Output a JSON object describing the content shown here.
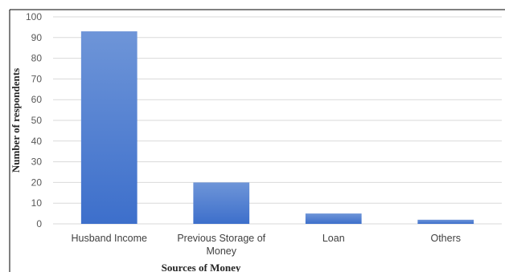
{
  "chart_data": {
    "type": "bar",
    "title": "",
    "xlabel": "Sources of Money",
    "ylabel": "Number of respondents",
    "categories": [
      [
        "Husband Income"
      ],
      [
        "Previous Storage of",
        "Money"
      ],
      [
        "Loan"
      ],
      [
        "Others"
      ]
    ],
    "values": [
      93,
      20,
      5,
      2
    ],
    "ylim": [
      0,
      100
    ],
    "yticks": [
      0,
      10,
      20,
      30,
      40,
      50,
      60,
      70,
      80,
      90,
      100
    ],
    "grid": true,
    "legend": "none",
    "colors": {
      "bar_top": "#6e95d8",
      "bar_bottom": "#3d6fcb",
      "grid": "#d9d9d9",
      "frame": "#000000"
    }
  }
}
